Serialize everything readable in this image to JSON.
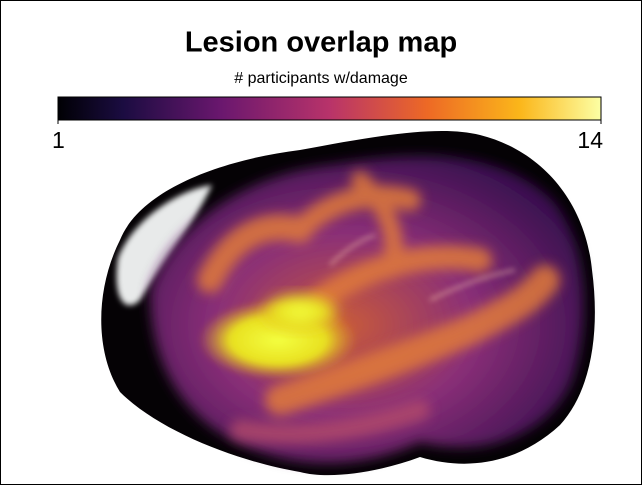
{
  "title": "Lesion overlap map",
  "colorbar": {
    "label": "# participants w/damage",
    "range": [
      1,
      14
    ],
    "ticks": [
      1,
      14
    ]
  }
}
